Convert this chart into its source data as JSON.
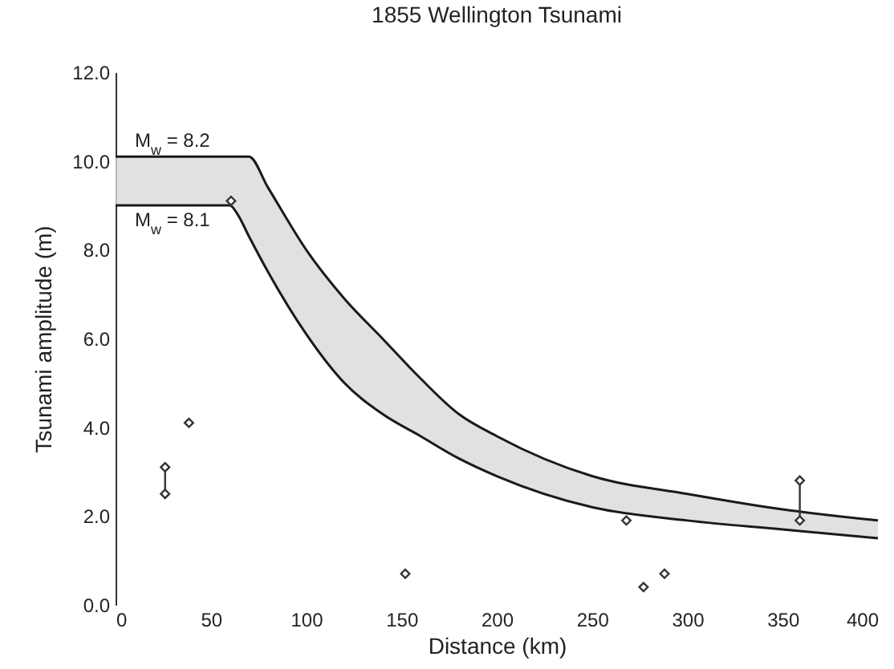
{
  "chart_data": {
    "type": "line",
    "title": "1855 Wellington Tsunami",
    "xlabel": "Distance (km)",
    "ylabel": "Tsunami amplitude (m)",
    "xlim": [
      0,
      400
    ],
    "xticks": [
      0,
      50,
      100,
      150,
      200,
      250,
      300,
      350,
      400
    ],
    "ylim": [
      0,
      12
    ],
    "yticks": [
      {
        "value": 0,
        "label": "0.0"
      },
      {
        "value": 2,
        "label": "2.0"
      },
      {
        "value": 4,
        "label": "4.0"
      },
      {
        "value": 6,
        "label": "6.0"
      },
      {
        "value": 8,
        "label": "8.0"
      },
      {
        "value": 10,
        "label": "10.0"
      },
      {
        "value": 12,
        "label": "12.0"
      }
    ],
    "grid": false,
    "series": [
      {
        "name": "M$_{w}$ = 8.2",
        "color": "#1a1a1a",
        "line_style": "solid",
        "marker": "none",
        "x": [
          0,
          20,
          40,
          60,
          64,
          70,
          80,
          100,
          120,
          140,
          160,
          180,
          200,
          250,
          300,
          350,
          400
        ],
        "values": [
          10.1,
          10.1,
          10.1,
          10.1,
          10.1,
          10.1,
          9.4,
          8.0,
          6.9,
          6.0,
          5.1,
          4.3,
          3.8,
          2.9,
          2.5,
          2.15,
          1.9
        ],
        "lower": [
          9.0,
          9.0,
          9.0,
          9.0,
          8.8,
          8.3,
          7.5,
          6.1,
          5.0,
          4.3,
          3.8,
          3.3,
          2.9,
          2.2,
          1.9,
          1.7,
          1.5
        ],
        "upper": [
          10.1,
          10.1,
          10.1,
          10.1,
          10.1,
          10.1,
          9.4,
          8.0,
          6.9,
          6.0,
          5.1,
          4.3,
          3.8,
          2.9,
          2.5,
          2.15,
          1.9
        ]
      },
      {
        "name": "M$_{w}$ = 8.1",
        "color": "#1a1a1a",
        "line_style": "solid",
        "marker": "none",
        "x": [
          0,
          20,
          40,
          60,
          64,
          70,
          80,
          100,
          120,
          140,
          160,
          180,
          200,
          250,
          300,
          350,
          400
        ],
        "values": [
          9.0,
          9.0,
          9.0,
          9.0,
          8.8,
          8.3,
          7.5,
          6.1,
          5.0,
          4.3,
          3.8,
          3.3,
          2.9,
          2.2,
          1.9,
          1.7,
          1.5
        ]
      },
      {
        "type": "scatter",
        "color": "#333333",
        "marker": "diamond",
        "x": [
          26,
          26,
          38.5,
          60.6,
          152,
          268,
          277,
          288,
          359,
          359
        ],
        "values": [
          3.1,
          2.5,
          4.1,
          9.1,
          0.7,
          1.9,
          0.4,
          0.7,
          2.8,
          1.9
        ],
        "errors": [
          [
            2.5,
            3.1
          ],
          null,
          null,
          null,
          null,
          null,
          null,
          null,
          [
            1.9,
            2.8
          ],
          null
        ]
      }
    ]
  }
}
